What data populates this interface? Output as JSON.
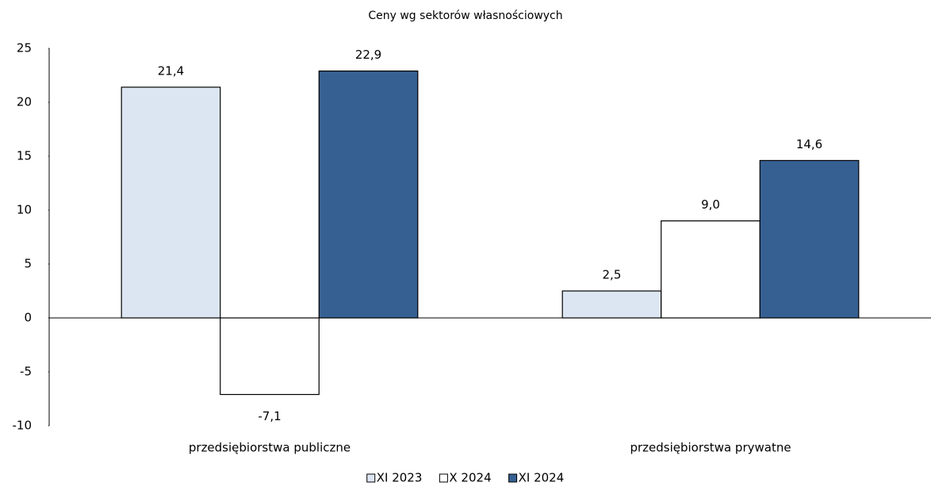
{
  "chart_data": {
    "type": "bar",
    "title": "Ceny wg sektorów własnościowych",
    "categories": [
      "przedsiębiorstwa publiczne",
      "przedsiębiorstwa prywatne"
    ],
    "series": [
      {
        "name": "XI 2023",
        "color": "#dce6f2",
        "values": [
          21.4,
          2.5
        ],
        "value_labels": [
          "21,4",
          "2,5"
        ]
      },
      {
        "name": "X 2024",
        "color": "#ffffff",
        "values": [
          -7.1,
          9.0
        ],
        "value_labels": [
          "-7,1",
          "9,0"
        ]
      },
      {
        "name": "XI 2024",
        "color": "#376092",
        "values": [
          22.9,
          14.6
        ],
        "value_labels": [
          "22,9",
          "14,6"
        ]
      }
    ],
    "ylim": [
      -10,
      25
    ],
    "yticks": [
      -10,
      -5,
      0,
      5,
      10,
      15,
      20,
      25
    ],
    "legend": "bottom"
  }
}
